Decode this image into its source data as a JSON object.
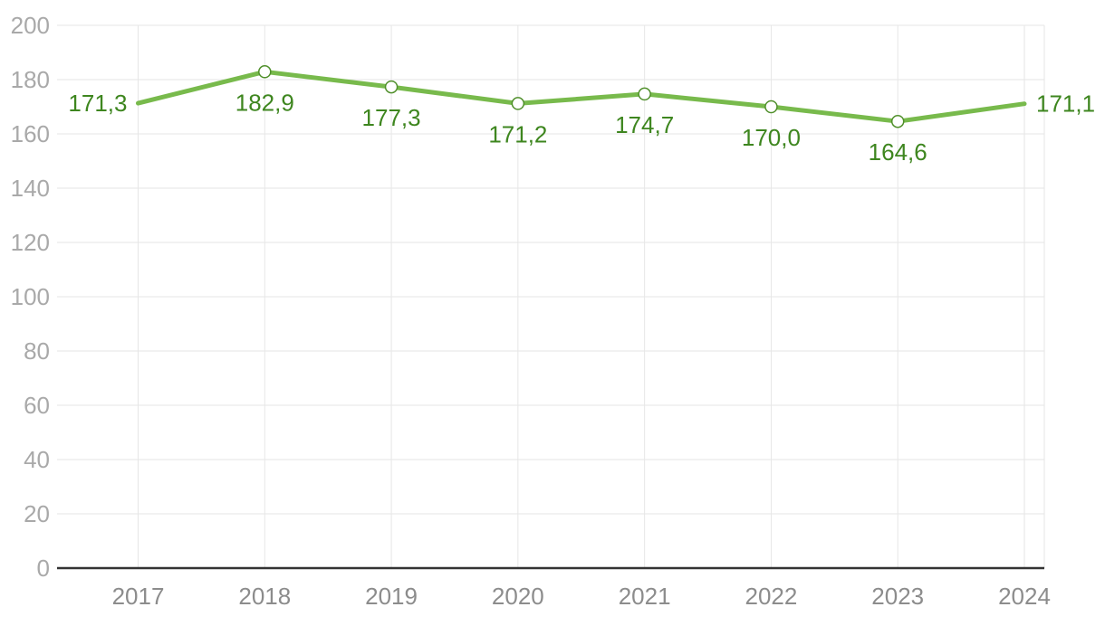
{
  "chart_data": {
    "type": "line",
    "title": "",
    "xlabel": "",
    "ylabel": "",
    "categories": [
      "2017",
      "2018",
      "2019",
      "2020",
      "2021",
      "2022",
      "2023",
      "2024"
    ],
    "values": [
      171.3,
      182.9,
      177.3,
      171.2,
      174.7,
      170.0,
      164.6,
      171.1
    ],
    "point_labels": [
      "171,3",
      "182,9",
      "177,3",
      "171,2",
      "174,7",
      "170,0",
      "164,6",
      "171,1"
    ],
    "ylim": [
      0,
      200
    ],
    "ytick_step": 20,
    "ytick_labels": [
      "0",
      "20",
      "40",
      "60",
      "80",
      "100",
      "120",
      "140",
      "160",
      "180",
      "200"
    ],
    "grid": "on",
    "legend": "none",
    "marker_style": "open-circle-white-fill-on-interior-points-only",
    "colors": {
      "line": "#78ba4c",
      "marker_stroke": "#4f8f2a",
      "marker_fill": "#ffffff",
      "point_label": "#3e861f",
      "y_tick_label": "#a9a9a9",
      "x_tick_label": "#8c8c8c",
      "gridline": "#e6e6e6",
      "axis_line": "#333333"
    }
  }
}
